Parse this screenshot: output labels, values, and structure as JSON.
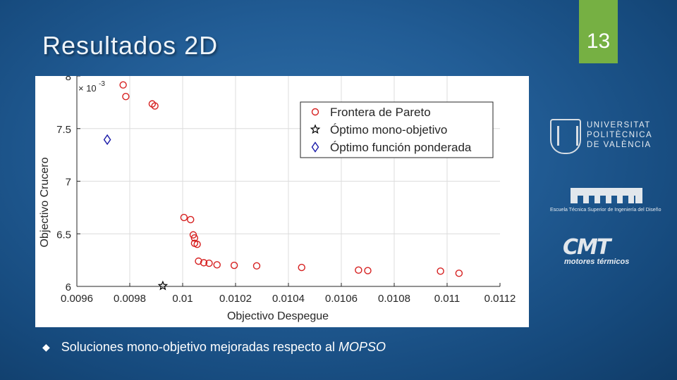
{
  "slide": {
    "title": "Resultados 2D",
    "page_number": "13",
    "bullet_text": "Soluciones mono-objetivo mejoradas respecto al",
    "bullet_emph": "MOPSO",
    "accent_color": "#76b043",
    "bullet_icon": "diamond-bullet-icon"
  },
  "logos": {
    "upv_lines": [
      "UNIVERSITAT",
      "POLITÈCNICA",
      "DE VALÈNCIA"
    ],
    "etsid_text": "Escuela Técnica Superior de Ingeniería del Diseño",
    "cmt_mark": "CMT",
    "cmt_text": "motores térmicos"
  },
  "chart_data": {
    "type": "scatter",
    "xlabel": "Objectivo Despegue",
    "ylabel": "Objectivo Crucero",
    "y_exponent": "× 10-3",
    "xlim": [
      0.0096,
      0.0112
    ],
    "ylim": [
      0.006,
      0.008
    ],
    "x_ticks": [
      0.0096,
      0.0098,
      0.01,
      0.0102,
      0.0104,
      0.0106,
      0.0108,
      0.011,
      0.0112
    ],
    "x_tick_labels": [
      "0.0096",
      "0.0098",
      "0.01",
      "0.0102",
      "0.0104",
      "0.0106",
      "0.0108",
      "0.011",
      "0.0112"
    ],
    "y_ticks": [
      0.006,
      0.0065,
      0.007,
      0.0075,
      0.008
    ],
    "y_tick_labels": [
      "6",
      "6.5",
      "7",
      "7.5",
      "8"
    ],
    "grid": true,
    "legend_position": "top-right",
    "series": [
      {
        "name": "Frontera de Pareto",
        "marker": "circle",
        "color": "#d62020",
        "points": [
          [
            0.009775,
            0.007915
          ],
          [
            0.009785,
            0.007805
          ],
          [
            0.009885,
            0.007735
          ],
          [
            0.009895,
            0.007715
          ],
          [
            0.010005,
            0.006655
          ],
          [
            0.01003,
            0.006635
          ],
          [
            0.01004,
            0.00649
          ],
          [
            0.010045,
            0.00646
          ],
          [
            0.010045,
            0.00641
          ],
          [
            0.010055,
            0.0064
          ],
          [
            0.01006,
            0.00624
          ],
          [
            0.01008,
            0.006225
          ],
          [
            0.0101,
            0.00622
          ],
          [
            0.01013,
            0.006205
          ],
          [
            0.010195,
            0.0062
          ],
          [
            0.01028,
            0.006195
          ],
          [
            0.01045,
            0.00618
          ],
          [
            0.010665,
            0.006155
          ],
          [
            0.0107,
            0.00615
          ],
          [
            0.010975,
            0.006145
          ],
          [
            0.011045,
            0.006125
          ]
        ]
      },
      {
        "name": "Óptimo mono-objetivo",
        "marker": "star",
        "color": "#000000",
        "points": [
          [
            0.009925,
            0.006005
          ]
        ]
      },
      {
        "name": "Óptimo función ponderada",
        "marker": "diamond",
        "color": "#1a1aa8",
        "points": [
          [
            0.009715,
            0.007395
          ]
        ]
      }
    ]
  }
}
